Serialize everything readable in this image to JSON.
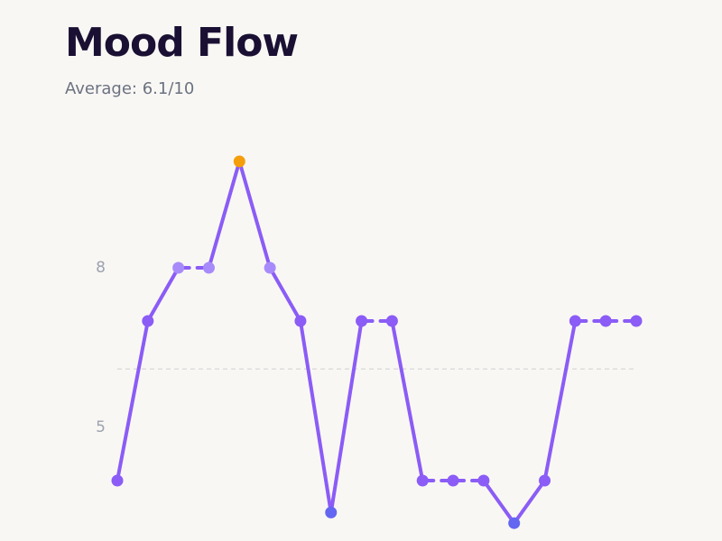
{
  "chart_data": {
    "type": "line",
    "title": "Mood Flow",
    "subtitle": "Average: 6.1/10",
    "series": [
      {
        "name": null,
        "color": "#8b5cf6",
        "values": [
          4,
          7,
          8,
          8,
          10,
          8,
          7,
          3.4,
          7,
          7,
          4,
          4,
          4,
          3.2,
          4,
          7,
          7,
          7
        ]
      }
    ],
    "point_colors": [
      "#8b5cf6",
      "#8b5cf6",
      "#a78bfa",
      "#a78bfa",
      "#f59e0b",
      "#a78bfa",
      "#8b5cf6",
      "#6366f1",
      "#8b5cf6",
      "#8b5cf6",
      "#8b5cf6",
      "#8b5cf6",
      "#8b5cf6",
      "#6366f1",
      "#8b5cf6",
      "#8b5cf6",
      "#8b5cf6",
      "#8b5cf6"
    ],
    "reference_line": 6.1,
    "ylim": [
      3,
      11
    ],
    "yticks": [
      5,
      8
    ],
    "grid": false
  }
}
